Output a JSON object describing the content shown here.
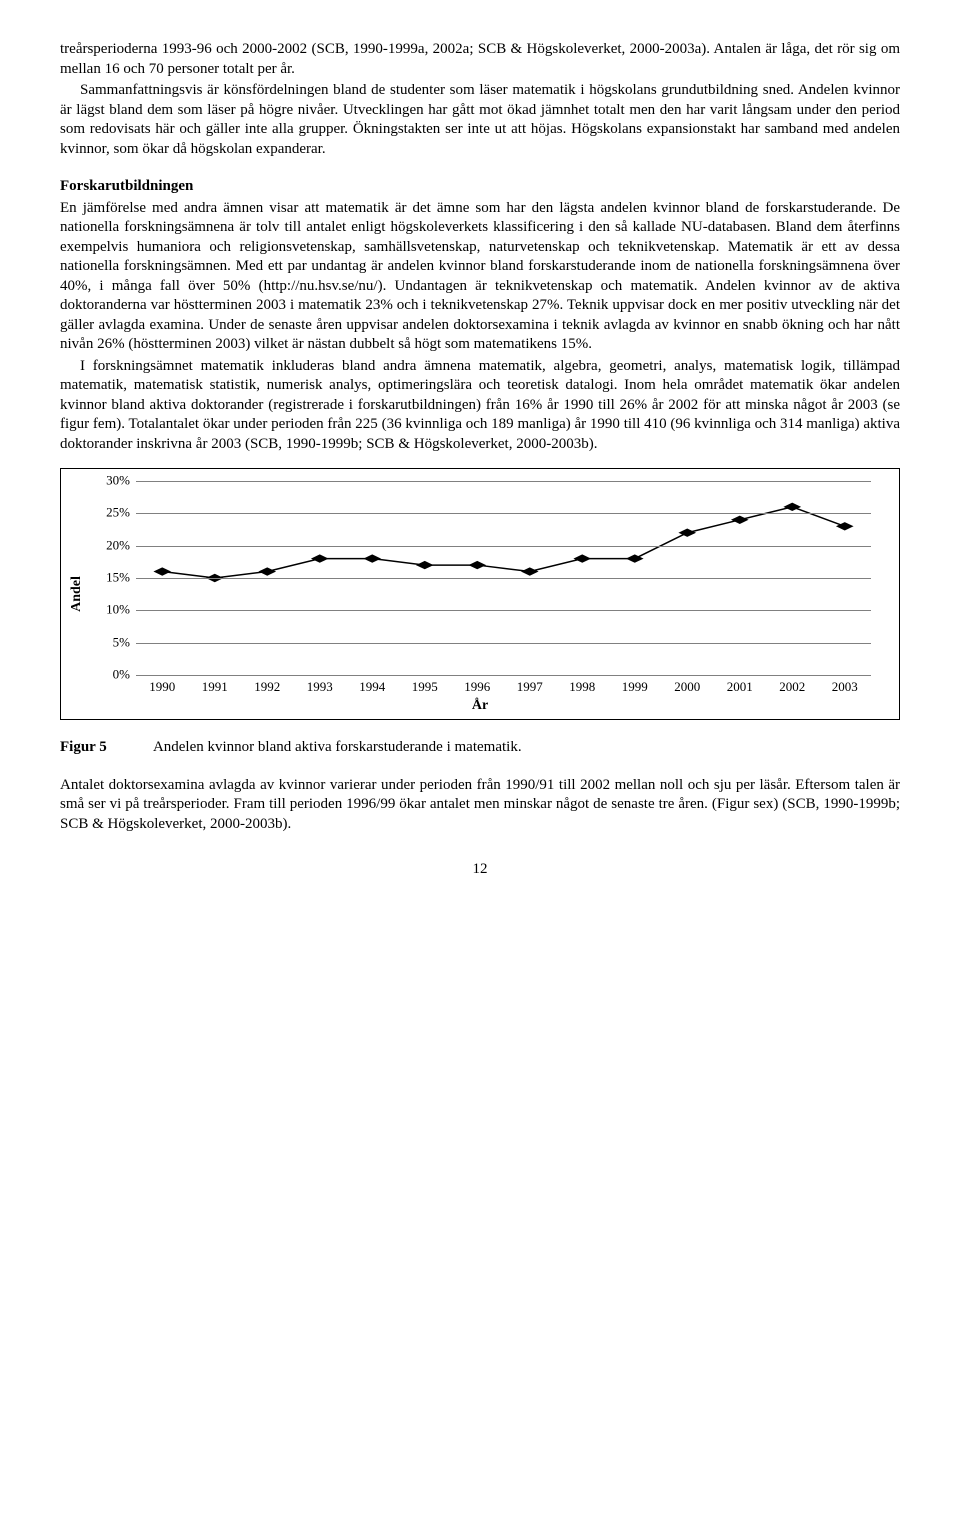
{
  "paragraphs": {
    "p1": "treårsperioderna 1993-96 och 2000-2002 (SCB, 1990-1999a, 2002a; SCB & Högskoleverket, 2000-2003a). Antalen är låga, det rör sig om mellan 16 och 70 personer totalt per år.",
    "p2": "Sammanfattningsvis är könsfördelningen bland de studenter som läser matematik i högskolans grundutbildning sned. Andelen kvinnor är lägst bland dem som läser på högre nivåer. Utvecklingen har gått mot ökad jämnhet totalt men den har varit långsam under den period som redovisats här och gäller inte alla grupper. Ökningstakten ser inte ut att höjas. Högskolans expansionstakt har samband med andelen kvinnor, som ökar då högskolan expanderar.",
    "forskar_title": "Forskarutbildningen",
    "p3": "En jämförelse med andra ämnen visar att matematik är det ämne som har den lägsta andelen kvinnor bland de forskarstuderande. De nationella forskningsämnena är tolv till antalet enligt högskoleverkets klassificering i den så kallade NU-databasen. Bland dem återfinns exempelvis humaniora och religionsvetenskap, samhällsvetenskap, naturvetenskap och teknikvetenskap. Matematik är ett av dessa nationella forskningsämnen. Med ett par undantag är andelen kvinnor bland forskarstuderande inom de nationella forskningsämnena över 40%, i många fall över 50% (http://nu.hsv.se/nu/). Undantagen är teknikvetenskap och matematik. Andelen kvinnor av de aktiva doktoranderna var höstterminen 2003 i matematik 23% och i teknikvetenskap 27%. Teknik uppvisar dock en mer positiv utveckling när det gäller avlagda examina. Under de senaste åren uppvisar andelen doktorsexamina i teknik avlagda av kvinnor en snabb ökning och har nått nivån 26% (höstterminen 2003) vilket är nästan dubbelt så högt som matematikens 15%.",
    "p4": "I forskningsämnet matematik inkluderas bland andra ämnena matematik, algebra, geometri, analys, matematisk logik, tillämpad matematik, matematisk statistik, numerisk analys, optimeringslära och teoretisk datalogi. Inom hela området matematik ökar andelen kvinnor bland aktiva doktorander (registrerade i forskarutbildningen) från 16% år 1990 till 26% år 2002 för att minska något år 2003 (se figur fem). Totalantalet ökar under perioden från 225 (36 kvinnliga och 189 manliga) år 1990 till 410 (96 kvinnliga och 314 manliga) aktiva doktorander inskrivna år 2003 (SCB, 1990-1999b; SCB & Högskoleverket, 2000-2003b).",
    "fig_label": "Figur 5",
    "fig_caption": "Andelen kvinnor bland aktiva forskarstuderande i matematik.",
    "p5": "Antalet doktorsexamina avlagda av kvinnor varierar under perioden från 1990/91 till 2002 mellan noll och sju per läsår. Eftersom talen är små ser vi på treårsperioder. Fram till perioden 1996/99 ökar antalet men minskar något de senaste tre åren. (Figur sex) (SCB, 1990-1999b; SCB & Högskoleverket, 2000-2003b).",
    "page_number": "12"
  },
  "chart": {
    "type": "line",
    "ylabel": "Andel",
    "xlabel": "År",
    "ylim": [
      0,
      30
    ],
    "ytick_step": 5,
    "yticks": [
      "0%",
      "5%",
      "10%",
      "15%",
      "20%",
      "25%",
      "30%"
    ],
    "categories": [
      1990,
      1991,
      1992,
      1993,
      1994,
      1995,
      1996,
      1997,
      1998,
      1999,
      2000,
      2001,
      2002,
      2003
    ],
    "values": [
      16,
      15,
      16,
      18,
      18,
      17,
      17,
      16,
      18,
      18,
      22,
      24,
      26,
      23
    ],
    "line_color": "#000000",
    "marker_color": "#000000",
    "grid_color": "#808080",
    "background_color": "#ffffff",
    "line_width": 1.5,
    "marker_size": 5,
    "marker_style": "diamond"
  }
}
